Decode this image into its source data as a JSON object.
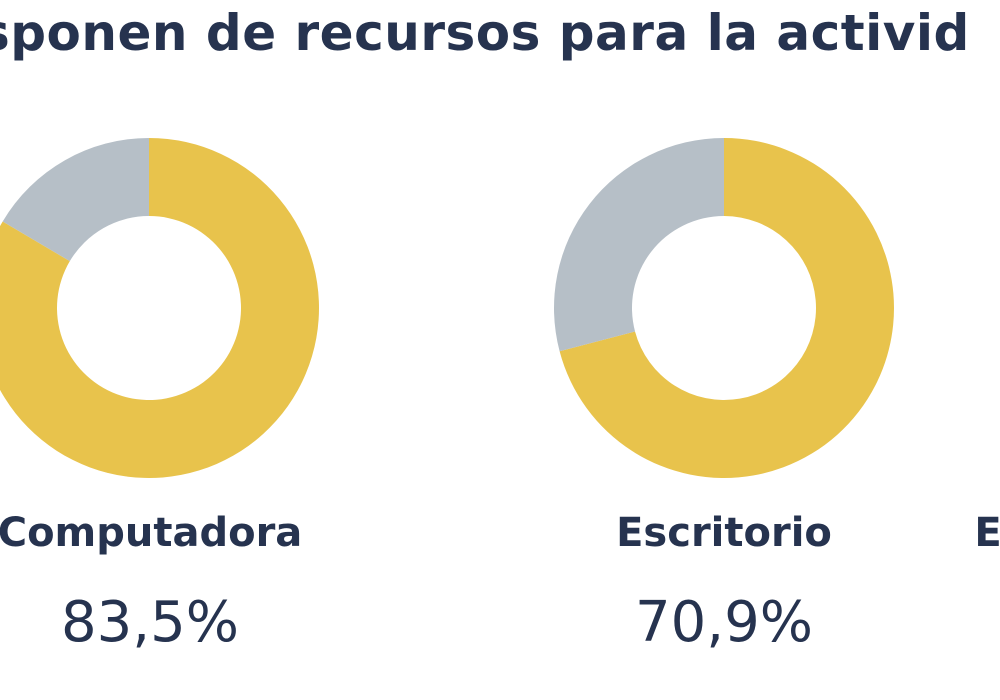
{
  "chart_data": {
    "type": "pie",
    "variant": "donut",
    "title": "sponen de recursos para la activid",
    "colors": {
      "filled": "#e8c34c",
      "remaining": "#b6bfc7"
    },
    "items": [
      {
        "label": "Computadora",
        "value": 83.5,
        "value_text": "83,5%"
      },
      {
        "label": "Escritorio",
        "value": 70.9,
        "value_text": "70,9%"
      },
      {
        "label": "Es",
        "value": null,
        "value_text": ""
      }
    ]
  }
}
